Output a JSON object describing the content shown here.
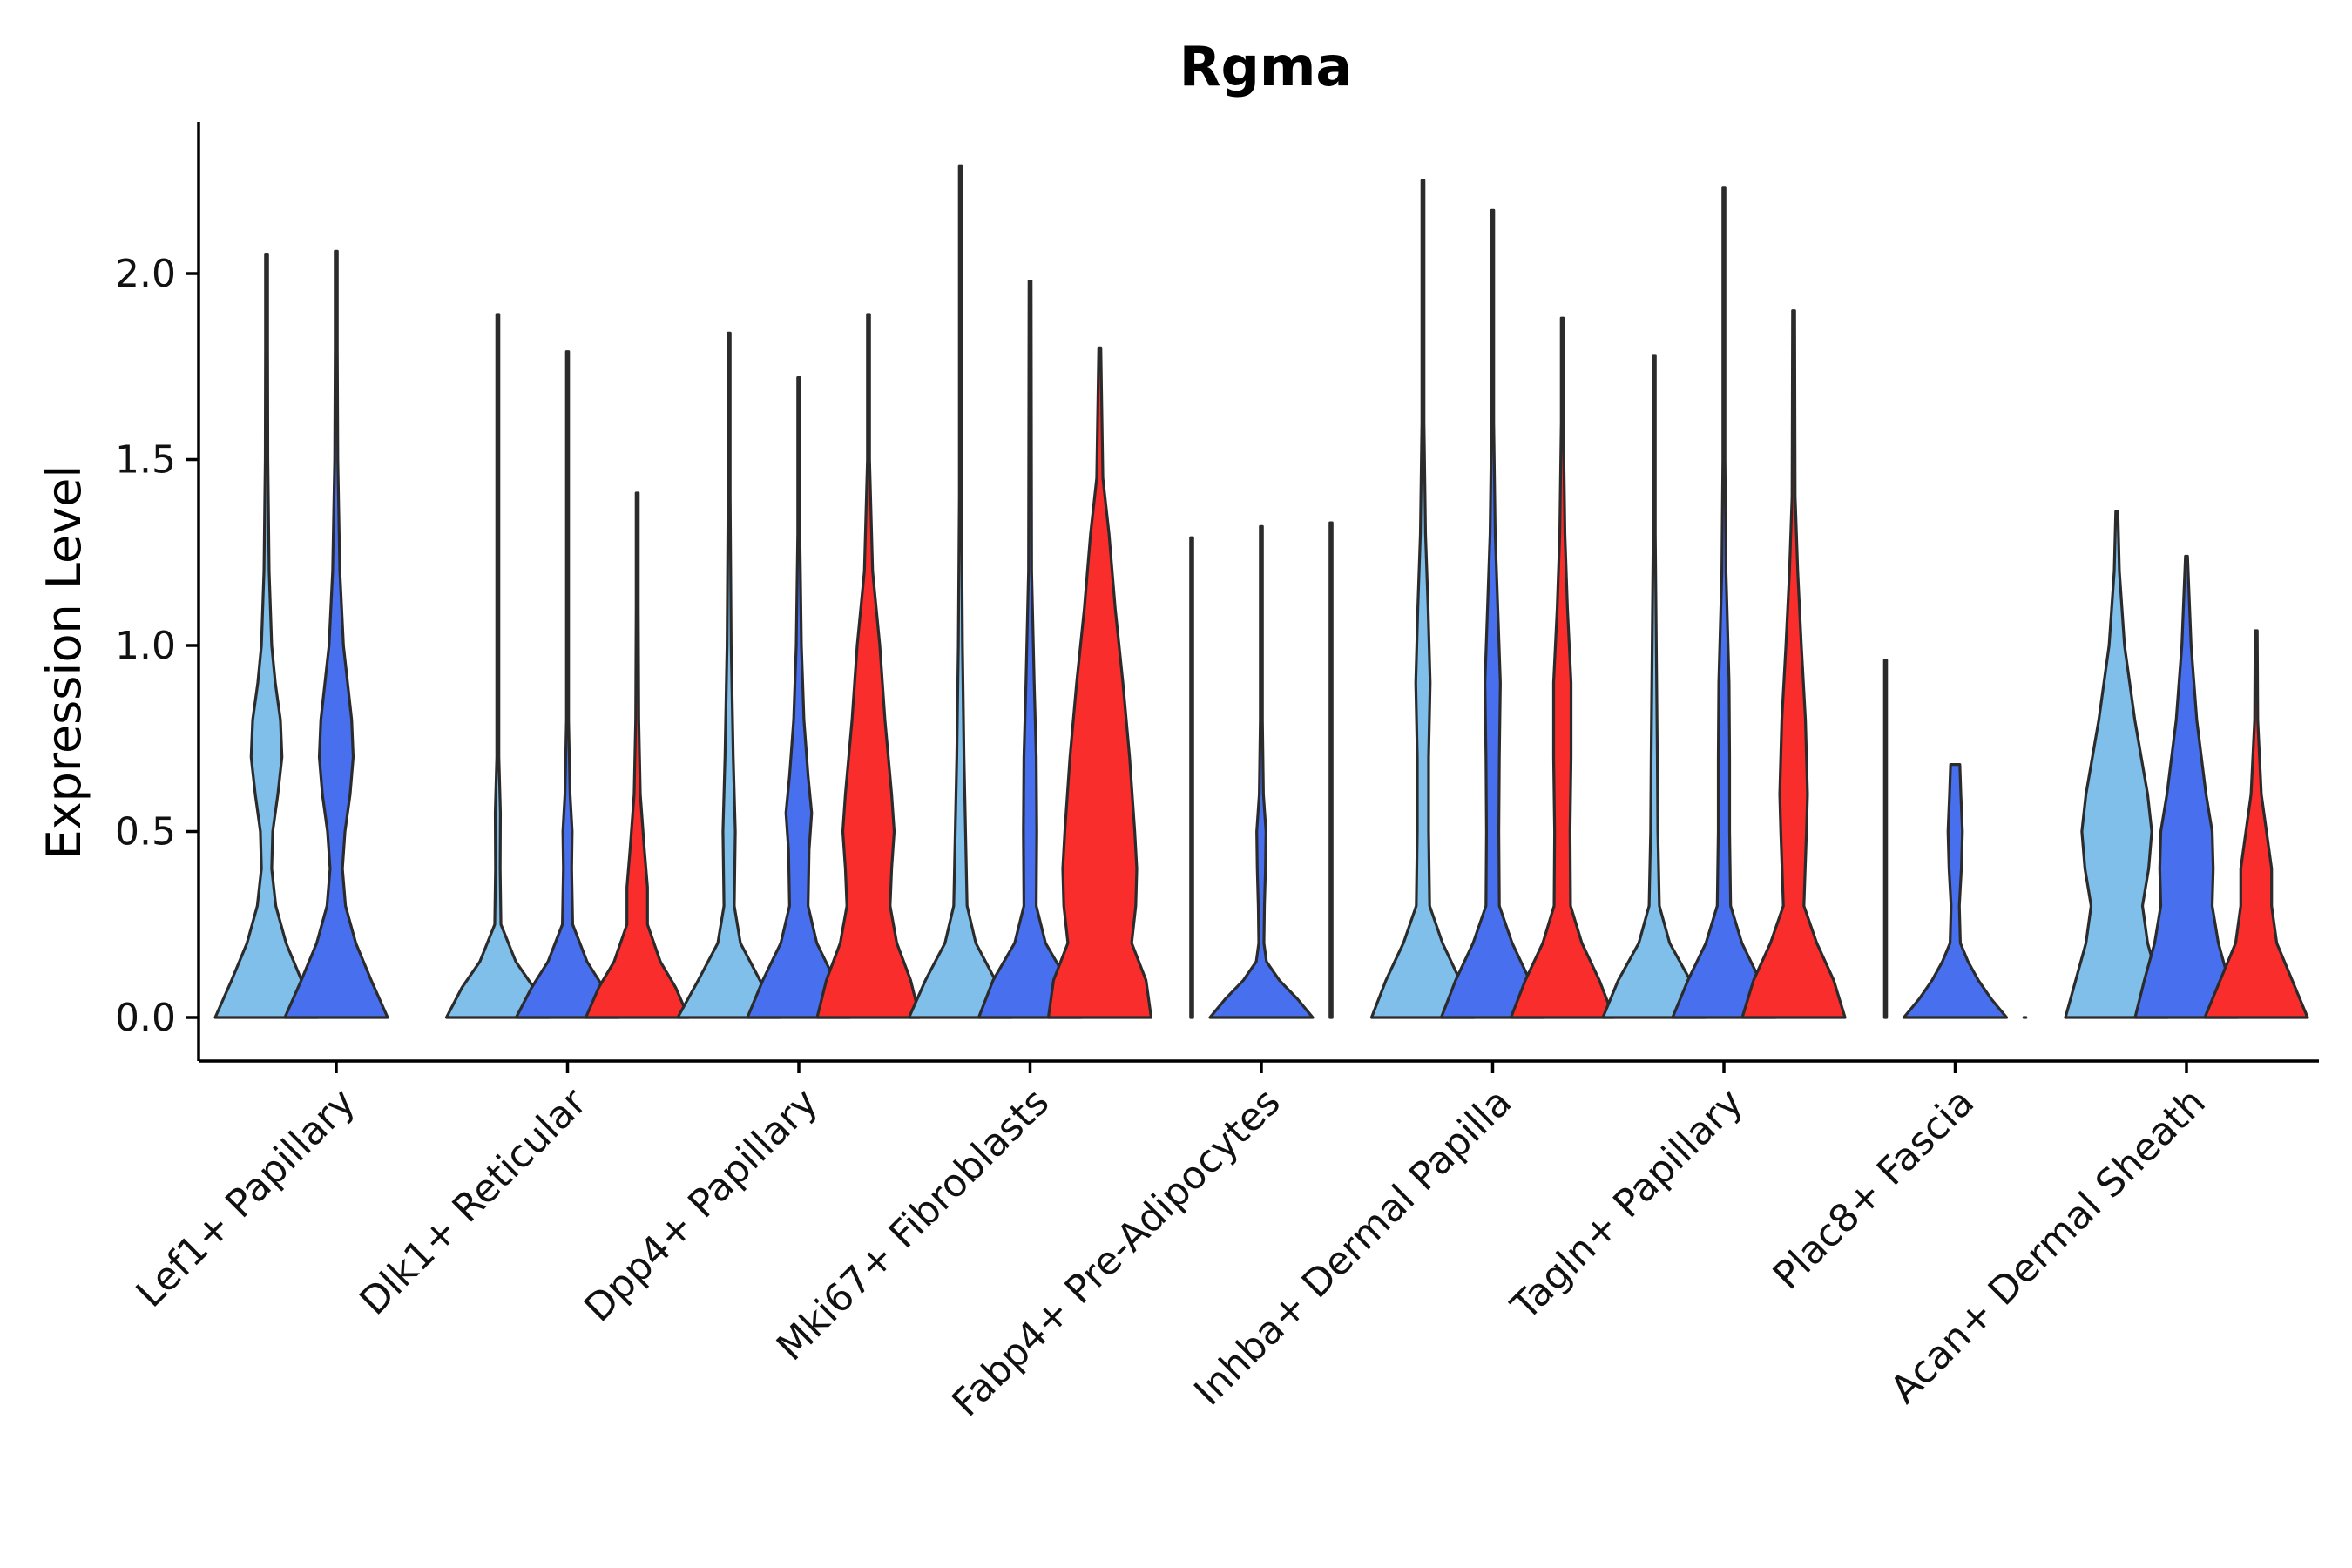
{
  "chart_data": {
    "type": "violin",
    "title": "Rgma",
    "xlabel": "",
    "ylabel": "Expression Level",
    "ylim": [
      -0.12,
      2.42
    ],
    "yticks": [
      "0.0",
      "0.5",
      "1.0",
      "1.5",
      "2.0"
    ],
    "ytick_values": [
      0.0,
      0.5,
      1.0,
      1.5,
      2.0
    ],
    "categories": [
      "Lef1+ Papillary",
      "Dlk1+ Reticular",
      "Dpp4+ Papillary",
      "Mki67+ Fibroblasts",
      "Fabp4+ Pre-Adipocytes",
      "Inhba+ Dermal Papilla",
      "Tagln+ Papillary",
      "Plac8+ Fascia",
      "Acan+ Dermal Sheath"
    ],
    "series_colors": [
      "#7fbfea",
      "#4870ee",
      "#fa2d2d"
    ],
    "violins": [
      {
        "category": 0,
        "series": 0,
        "max": 2.05,
        "profile": [
          [
            0,
            1
          ],
          [
            0.1,
            0.68
          ],
          [
            0.2,
            0.38
          ],
          [
            0.3,
            0.18
          ],
          [
            0.4,
            0.1
          ],
          [
            0.5,
            0.12
          ],
          [
            0.6,
            0.22
          ],
          [
            0.7,
            0.3
          ],
          [
            0.8,
            0.27
          ],
          [
            0.9,
            0.17
          ],
          [
            1.0,
            0.1
          ],
          [
            1.2,
            0.05
          ],
          [
            1.5,
            0.025
          ],
          [
            1.8,
            0.012
          ],
          [
            2.05,
            0.004
          ]
        ]
      },
      {
        "category": 0,
        "series": 1,
        "max": 2.06,
        "profile": [
          [
            0,
            1
          ],
          [
            0.1,
            0.68
          ],
          [
            0.2,
            0.38
          ],
          [
            0.3,
            0.18
          ],
          [
            0.4,
            0.12
          ],
          [
            0.5,
            0.17
          ],
          [
            0.6,
            0.27
          ],
          [
            0.7,
            0.33
          ],
          [
            0.8,
            0.3
          ],
          [
            0.9,
            0.22
          ],
          [
            1.0,
            0.14
          ],
          [
            1.2,
            0.07
          ],
          [
            1.5,
            0.03
          ],
          [
            1.8,
            0.012
          ],
          [
            2.06,
            0.004
          ]
        ]
      },
      {
        "category": 1,
        "series": 0,
        "max": 1.89,
        "profile": [
          [
            0,
            1
          ],
          [
            0.08,
            0.7
          ],
          [
            0.15,
            0.35
          ],
          [
            0.25,
            0.06
          ],
          [
            0.4,
            0.045
          ],
          [
            0.55,
            0.05
          ],
          [
            0.7,
            0.02
          ],
          [
            1.0,
            0.01
          ],
          [
            1.5,
            0.006
          ],
          [
            1.89,
            0.003
          ]
        ]
      },
      {
        "category": 1,
        "series": 1,
        "max": 1.79,
        "profile": [
          [
            0,
            1
          ],
          [
            0.08,
            0.7
          ],
          [
            0.15,
            0.38
          ],
          [
            0.25,
            0.1
          ],
          [
            0.4,
            0.08
          ],
          [
            0.5,
            0.09
          ],
          [
            0.6,
            0.05
          ],
          [
            0.8,
            0.02
          ],
          [
            1.2,
            0.01
          ],
          [
            1.79,
            0.003
          ]
        ]
      },
      {
        "category": 1,
        "series": 2,
        "max": 1.41,
        "profile": [
          [
            0,
            1
          ],
          [
            0.08,
            0.75
          ],
          [
            0.15,
            0.45
          ],
          [
            0.25,
            0.2
          ],
          [
            0.35,
            0.2
          ],
          [
            0.45,
            0.14
          ],
          [
            0.6,
            0.06
          ],
          [
            0.8,
            0.03
          ],
          [
            1.1,
            0.01
          ],
          [
            1.41,
            0.003
          ]
        ]
      },
      {
        "category": 2,
        "series": 0,
        "max": 1.84,
        "profile": [
          [
            0,
            1
          ],
          [
            0.1,
            0.6
          ],
          [
            0.2,
            0.22
          ],
          [
            0.3,
            0.1
          ],
          [
            0.4,
            0.11
          ],
          [
            0.5,
            0.12
          ],
          [
            0.7,
            0.08
          ],
          [
            1.0,
            0.04
          ],
          [
            1.4,
            0.015
          ],
          [
            1.84,
            0.003
          ]
        ]
      },
      {
        "category": 2,
        "series": 1,
        "max": 1.72,
        "profile": [
          [
            0,
            1
          ],
          [
            0.1,
            0.7
          ],
          [
            0.2,
            0.35
          ],
          [
            0.3,
            0.18
          ],
          [
            0.45,
            0.2
          ],
          [
            0.55,
            0.25
          ],
          [
            0.65,
            0.18
          ],
          [
            0.8,
            0.1
          ],
          [
            1.0,
            0.05
          ],
          [
            1.3,
            0.02
          ],
          [
            1.72,
            0.003
          ]
        ]
      },
      {
        "category": 2,
        "series": 2,
        "max": 1.89,
        "profile": [
          [
            0,
            1
          ],
          [
            0.1,
            0.82
          ],
          [
            0.2,
            0.55
          ],
          [
            0.3,
            0.42
          ],
          [
            0.4,
            0.45
          ],
          [
            0.5,
            0.5
          ],
          [
            0.6,
            0.45
          ],
          [
            0.8,
            0.32
          ],
          [
            1.0,
            0.22
          ],
          [
            1.2,
            0.08
          ],
          [
            1.5,
            0.02
          ],
          [
            1.89,
            0.003
          ]
        ]
      },
      {
        "category": 3,
        "series": 0,
        "max": 2.29,
        "profile": [
          [
            0,
            1
          ],
          [
            0.1,
            0.68
          ],
          [
            0.2,
            0.3
          ],
          [
            0.3,
            0.13
          ],
          [
            0.5,
            0.1
          ],
          [
            0.7,
            0.07
          ],
          [
            1.0,
            0.04
          ],
          [
            1.4,
            0.01
          ],
          [
            2.29,
            0.003
          ]
        ]
      },
      {
        "category": 3,
        "series": 1,
        "max": 1.98,
        "profile": [
          [
            0,
            1
          ],
          [
            0.1,
            0.72
          ],
          [
            0.2,
            0.3
          ],
          [
            0.3,
            0.12
          ],
          [
            0.5,
            0.13
          ],
          [
            0.7,
            0.12
          ],
          [
            0.9,
            0.08
          ],
          [
            1.2,
            0.03
          ],
          [
            1.98,
            0.003
          ]
        ]
      },
      {
        "category": 3,
        "series": 2,
        "max": 1.8,
        "profile": [
          [
            0,
            1
          ],
          [
            0.1,
            0.9
          ],
          [
            0.2,
            0.62
          ],
          [
            0.3,
            0.7
          ],
          [
            0.4,
            0.72
          ],
          [
            0.5,
            0.68
          ],
          [
            0.7,
            0.58
          ],
          [
            0.9,
            0.45
          ],
          [
            1.1,
            0.3
          ],
          [
            1.3,
            0.18
          ],
          [
            1.45,
            0.06
          ],
          [
            1.8,
            0.003
          ]
        ]
      },
      {
        "category": 4,
        "series": 0,
        "max": 1.29,
        "profile": [
          [
            0,
            0.003
          ],
          [
            1.29,
            0.003
          ]
        ]
      },
      {
        "category": 4,
        "series": 1,
        "max": 1.32,
        "profile": [
          [
            0,
            1
          ],
          [
            0.05,
            0.7
          ],
          [
            0.1,
            0.35
          ],
          [
            0.15,
            0.1
          ],
          [
            0.2,
            0.05
          ],
          [
            0.3,
            0.06
          ],
          [
            0.4,
            0.08
          ],
          [
            0.5,
            0.09
          ],
          [
            0.6,
            0.04
          ],
          [
            0.8,
            0.01
          ],
          [
            1.32,
            0.003
          ]
        ]
      },
      {
        "category": 4,
        "series": 2,
        "max": 1.33,
        "profile": [
          [
            0,
            0.003
          ],
          [
            1.33,
            0.003
          ]
        ]
      },
      {
        "category": 5,
        "series": 0,
        "max": 2.25,
        "profile": [
          [
            0,
            1
          ],
          [
            0.1,
            0.72
          ],
          [
            0.2,
            0.38
          ],
          [
            0.3,
            0.13
          ],
          [
            0.5,
            0.11
          ],
          [
            0.7,
            0.11
          ],
          [
            0.9,
            0.14
          ],
          [
            1.1,
            0.1
          ],
          [
            1.3,
            0.05
          ],
          [
            1.6,
            0.02
          ],
          [
            2.25,
            0.003
          ]
        ]
      },
      {
        "category": 5,
        "series": 1,
        "max": 2.17,
        "profile": [
          [
            0,
            1
          ],
          [
            0.1,
            0.72
          ],
          [
            0.2,
            0.38
          ],
          [
            0.3,
            0.13
          ],
          [
            0.5,
            0.12
          ],
          [
            0.7,
            0.13
          ],
          [
            0.9,
            0.15
          ],
          [
            1.1,
            0.1
          ],
          [
            1.3,
            0.05
          ],
          [
            1.6,
            0.02
          ],
          [
            2.17,
            0.003
          ]
        ]
      },
      {
        "category": 5,
        "series": 2,
        "max": 1.88,
        "profile": [
          [
            0,
            1
          ],
          [
            0.1,
            0.72
          ],
          [
            0.2,
            0.38
          ],
          [
            0.3,
            0.16
          ],
          [
            0.5,
            0.15
          ],
          [
            0.7,
            0.17
          ],
          [
            0.9,
            0.17
          ],
          [
            1.1,
            0.1
          ],
          [
            1.3,
            0.05
          ],
          [
            1.6,
            0.02
          ],
          [
            1.88,
            0.003
          ]
        ]
      },
      {
        "category": 6,
        "series": 0,
        "max": 1.78,
        "profile": [
          [
            0,
            1
          ],
          [
            0.1,
            0.7
          ],
          [
            0.2,
            0.3
          ],
          [
            0.3,
            0.1
          ],
          [
            0.5,
            0.07
          ],
          [
            0.7,
            0.06
          ],
          [
            1.0,
            0.04
          ],
          [
            1.3,
            0.02
          ],
          [
            1.78,
            0.003
          ]
        ]
      },
      {
        "category": 6,
        "series": 1,
        "max": 2.23,
        "profile": [
          [
            0,
            1
          ],
          [
            0.1,
            0.7
          ],
          [
            0.2,
            0.35
          ],
          [
            0.3,
            0.13
          ],
          [
            0.5,
            0.11
          ],
          [
            0.7,
            0.11
          ],
          [
            0.9,
            0.1
          ],
          [
            1.2,
            0.04
          ],
          [
            1.5,
            0.015
          ],
          [
            2.23,
            0.003
          ]
        ]
      },
      {
        "category": 6,
        "series": 2,
        "max": 1.9,
        "profile": [
          [
            0,
            1
          ],
          [
            0.1,
            0.78
          ],
          [
            0.2,
            0.45
          ],
          [
            0.3,
            0.2
          ],
          [
            0.5,
            0.25
          ],
          [
            0.6,
            0.27
          ],
          [
            0.8,
            0.23
          ],
          [
            1.0,
            0.15
          ],
          [
            1.2,
            0.08
          ],
          [
            1.4,
            0.03
          ],
          [
            1.9,
            0.003
          ]
        ]
      },
      {
        "category": 7,
        "series": 0,
        "max": 0.96,
        "profile": [
          [
            0,
            0.003
          ],
          [
            0.96,
            0.003
          ]
        ]
      },
      {
        "category": 7,
        "series": 1,
        "max": 0.68,
        "profile": [
          [
            0,
            1
          ],
          [
            0.05,
            0.7
          ],
          [
            0.1,
            0.45
          ],
          [
            0.15,
            0.25
          ],
          [
            0.2,
            0.1
          ],
          [
            0.3,
            0.08
          ],
          [
            0.4,
            0.12
          ],
          [
            0.5,
            0.14
          ],
          [
            0.6,
            0.11
          ],
          [
            0.68,
            0.09
          ]
        ]
      },
      {
        "category": 7,
        "series": 2,
        "max": 0.003,
        "profile": [
          [
            0,
            0.003
          ]
        ]
      },
      {
        "category": 8,
        "series": 0,
        "max": 1.36,
        "profile": [
          [
            0,
            1
          ],
          [
            0.1,
            0.8
          ],
          [
            0.2,
            0.6
          ],
          [
            0.3,
            0.5
          ],
          [
            0.4,
            0.62
          ],
          [
            0.5,
            0.68
          ],
          [
            0.6,
            0.6
          ],
          [
            0.8,
            0.35
          ],
          [
            1.0,
            0.15
          ],
          [
            1.2,
            0.05
          ],
          [
            1.36,
            0.02
          ]
        ]
      },
      {
        "category": 8,
        "series": 1,
        "max": 1.24,
        "profile": [
          [
            0,
            1
          ],
          [
            0.1,
            0.82
          ],
          [
            0.2,
            0.62
          ],
          [
            0.3,
            0.5
          ],
          [
            0.4,
            0.52
          ],
          [
            0.5,
            0.5
          ],
          [
            0.6,
            0.38
          ],
          [
            0.8,
            0.2
          ],
          [
            1.0,
            0.09
          ],
          [
            1.24,
            0.02
          ]
        ]
      },
      {
        "category": 8,
        "series": 2,
        "max": 1.04,
        "profile": [
          [
            0,
            1
          ],
          [
            0.1,
            0.7
          ],
          [
            0.2,
            0.4
          ],
          [
            0.3,
            0.3
          ],
          [
            0.4,
            0.3
          ],
          [
            0.5,
            0.2
          ],
          [
            0.6,
            0.1
          ],
          [
            0.8,
            0.03
          ],
          [
            1.04,
            0.003
          ]
        ]
      }
    ]
  }
}
